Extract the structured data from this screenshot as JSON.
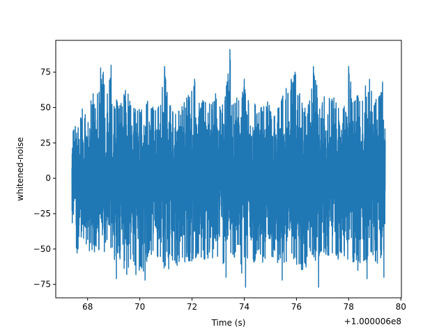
{
  "chart_data": {
    "type": "line",
    "xlabel": "Time (s)",
    "ylabel": "whitened-noise",
    "x_offset_label": "+1.000006e8",
    "x_range": [
      67.4,
      79.4
    ],
    "xlim": [
      66.78,
      80.02
    ],
    "ylim": [
      -84.5,
      97.5
    ],
    "x_ticks": [
      68,
      70,
      72,
      74,
      76,
      78,
      80
    ],
    "x_tick_labels": [
      "68",
      "70",
      "72",
      "74",
      "76",
      "78",
      "80"
    ],
    "y_ticks": [
      -75,
      -50,
      -25,
      0,
      25,
      50,
      75
    ],
    "y_tick_labels": [
      "−75",
      "−50",
      "−25",
      "0",
      "25",
      "50",
      "75"
    ],
    "grid": false,
    "series": [
      {
        "color": "#1f77b4",
        "envelope_upper": [
          [
            67.4,
            33
          ],
          [
            67.5,
            40
          ],
          [
            67.55,
            60
          ],
          [
            67.6,
            38
          ],
          [
            67.8,
            50
          ],
          [
            68.0,
            42
          ],
          [
            68.2,
            62
          ],
          [
            68.3,
            55
          ],
          [
            68.5,
            78
          ],
          [
            68.6,
            75
          ],
          [
            68.7,
            56
          ],
          [
            68.9,
            80
          ],
          [
            69.0,
            55
          ],
          [
            69.3,
            58
          ],
          [
            69.5,
            65
          ],
          [
            69.7,
            52
          ],
          [
            69.9,
            55
          ],
          [
            70.1,
            50
          ],
          [
            70.3,
            55
          ],
          [
            70.6,
            50
          ],
          [
            70.8,
            58
          ],
          [
            70.95,
            79
          ],
          [
            71.1,
            55
          ],
          [
            71.3,
            50
          ],
          [
            71.6,
            52
          ],
          [
            71.9,
            62
          ],
          [
            72.1,
            70
          ],
          [
            72.3,
            55
          ],
          [
            72.5,
            57
          ],
          [
            72.7,
            52
          ],
          [
            72.9,
            60
          ],
          [
            73.1,
            50
          ],
          [
            73.3,
            63
          ],
          [
            73.45,
            91
          ],
          [
            73.6,
            55
          ],
          [
            73.8,
            60
          ],
          [
            74.0,
            70
          ],
          [
            74.2,
            52
          ],
          [
            74.4,
            53
          ],
          [
            74.7,
            50
          ],
          [
            74.9,
            55
          ],
          [
            75.1,
            45
          ],
          [
            75.3,
            55
          ],
          [
            75.6,
            65
          ],
          [
            75.8,
            70
          ],
          [
            75.95,
            75
          ],
          [
            76.2,
            55
          ],
          [
            76.4,
            50
          ],
          [
            76.65,
            79
          ],
          [
            76.9,
            55
          ],
          [
            77.1,
            62
          ],
          [
            77.4,
            58
          ],
          [
            77.7,
            55
          ],
          [
            77.9,
            53
          ],
          [
            78.0,
            79
          ],
          [
            78.2,
            55
          ],
          [
            78.5,
            63
          ],
          [
            78.8,
            70
          ],
          [
            79.0,
            55
          ],
          [
            79.3,
            68
          ],
          [
            79.4,
            50
          ]
        ],
        "envelope_lower": [
          [
            67.4,
            -30
          ],
          [
            67.5,
            -45
          ],
          [
            67.6,
            -56
          ],
          [
            67.7,
            -40
          ],
          [
            67.9,
            -48
          ],
          [
            68.1,
            -52
          ],
          [
            68.3,
            -55
          ],
          [
            68.5,
            -50
          ],
          [
            68.6,
            -57
          ],
          [
            68.8,
            -45
          ],
          [
            69.0,
            -60
          ],
          [
            69.2,
            -55
          ],
          [
            69.3,
            -64
          ],
          [
            69.5,
            -68
          ],
          [
            69.7,
            -58
          ],
          [
            69.9,
            -65
          ],
          [
            70.1,
            -68
          ],
          [
            70.3,
            -60
          ],
          [
            70.5,
            -58
          ],
          [
            70.7,
            -62
          ],
          [
            70.9,
            -68
          ],
          [
            71.1,
            -55
          ],
          [
            71.3,
            -60
          ],
          [
            71.6,
            -64
          ],
          [
            71.8,
            -58
          ],
          [
            72.0,
            -62
          ],
          [
            72.3,
            -55
          ],
          [
            72.5,
            -59
          ],
          [
            72.8,
            -57
          ],
          [
            73.1,
            -63
          ],
          [
            73.3,
            -60
          ],
          [
            73.6,
            -55
          ],
          [
            73.8,
            -66
          ],
          [
            74.0,
            -58
          ],
          [
            74.2,
            -60
          ],
          [
            74.4,
            -60
          ],
          [
            74.6,
            -57
          ],
          [
            74.9,
            -65
          ],
          [
            75.1,
            -58
          ],
          [
            75.3,
            -60
          ],
          [
            75.6,
            -60
          ],
          [
            75.8,
            -55
          ],
          [
            76.0,
            -62
          ],
          [
            76.3,
            -68
          ],
          [
            76.5,
            -56
          ],
          [
            76.9,
            -60
          ],
          [
            77.2,
            -55
          ],
          [
            77.5,
            -58
          ],
          [
            77.7,
            -58
          ],
          [
            78.0,
            -62
          ],
          [
            78.3,
            -60
          ],
          [
            78.6,
            -60
          ],
          [
            78.9,
            -58
          ],
          [
            79.1,
            -59
          ],
          [
            79.3,
            -55
          ],
          [
            79.4,
            -45
          ]
        ],
        "lower_spikes": [
          [
            69.1,
            -71
          ],
          [
            69.5,
            -68
          ],
          [
            69.85,
            -68
          ],
          [
            70.2,
            -72
          ],
          [
            71.1,
            -64
          ],
          [
            73.3,
            -70
          ],
          [
            73.9,
            -67
          ],
          [
            74.05,
            -77
          ],
          [
            75.45,
            -72
          ],
          [
            76.85,
            -77
          ],
          [
            78.35,
            -65
          ],
          [
            78.7,
            -71
          ],
          [
            79.1,
            -60
          ],
          [
            79.35,
            -70
          ]
        ]
      }
    ]
  }
}
